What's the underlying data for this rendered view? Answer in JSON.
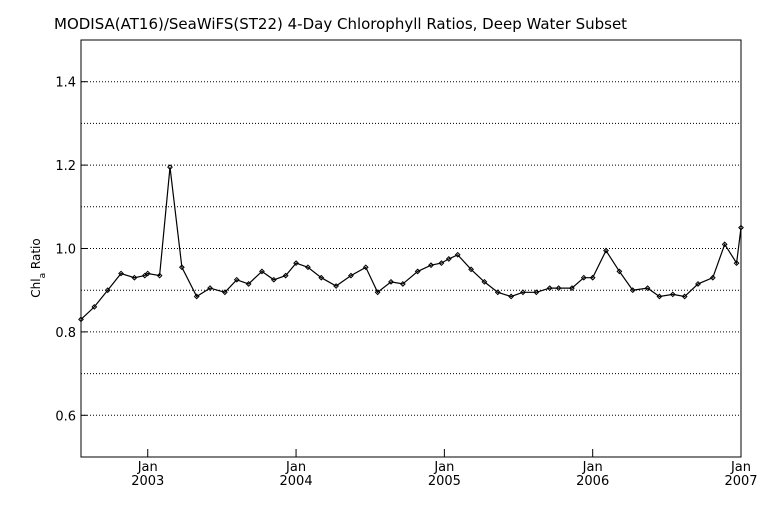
{
  "chart_data": {
    "type": "line",
    "title": "MODISA(AT16)/SeaWiFS(ST22) 4-Day Chlorophyll Ratios, Deep Water Subset",
    "ylabel_main": "Chl",
    "ylabel_sub": "a",
    "ylabel_rest": " Ratio",
    "xlabel": "",
    "ylim": [
      0.5,
      1.5
    ],
    "xlim": [
      2002.55,
      2007.0
    ],
    "yticks": [
      {
        "value": 0.6,
        "label": "0.6"
      },
      {
        "value": 0.8,
        "label": "0.8"
      },
      {
        "value": 1.0,
        "label": "1.0"
      },
      {
        "value": 1.2,
        "label": "1.2"
      },
      {
        "value": 1.4,
        "label": "1.4"
      }
    ],
    "ygrid": [
      0.6,
      0.7,
      0.8,
      0.9,
      1.0,
      1.1,
      1.2,
      1.3,
      1.4
    ],
    "xticks": [
      {
        "value": 2003.0,
        "month": "Jan",
        "year": "2003"
      },
      {
        "value": 2004.0,
        "month": "Jan",
        "year": "2004"
      },
      {
        "value": 2005.0,
        "month": "Jan",
        "year": "2005"
      },
      {
        "value": 2006.0,
        "month": "Jan",
        "year": "2006"
      },
      {
        "value": 2007.0,
        "month": "Jan",
        "year": "2007"
      }
    ],
    "grid": "horizontal dotted",
    "series": [
      {
        "color": "#000000",
        "x": [
          2002.55,
          2002.64,
          2002.73,
          2002.82,
          2002.91,
          2002.98,
          2003.0,
          2003.08,
          2003.15,
          2003.23,
          2003.33,
          2003.42,
          2003.52,
          2003.6,
          2003.68,
          2003.77,
          2003.85,
          2003.93,
          2004.0,
          2004.08,
          2004.17,
          2004.27,
          2004.37,
          2004.47,
          2004.55,
          2004.64,
          2004.72,
          2004.82,
          2004.91,
          2004.98,
          2005.03,
          2005.09,
          2005.18,
          2005.27,
          2005.36,
          2005.45,
          2005.53,
          2005.62,
          2005.71,
          2005.77,
          2005.86,
          2005.94,
          2006.0,
          2006.09,
          2006.18,
          2006.27,
          2006.37,
          2006.45,
          2006.54,
          2006.62,
          2006.71,
          2006.81,
          2006.89,
          2006.97,
          2007.0
        ],
        "y": [
          0.83,
          0.86,
          0.9,
          0.94,
          0.93,
          0.935,
          0.94,
          0.935,
          1.195,
          0.955,
          0.885,
          0.905,
          0.895,
          0.925,
          0.915,
          0.945,
          0.925,
          0.935,
          0.965,
          0.955,
          0.93,
          0.91,
          0.935,
          0.955,
          0.895,
          0.92,
          0.915,
          0.945,
          0.96,
          0.965,
          0.975,
          0.985,
          0.95,
          0.92,
          0.895,
          0.885,
          0.895,
          0.895,
          0.905,
          0.905,
          0.905,
          0.93,
          0.93,
          0.995,
          0.945,
          0.9,
          0.905,
          0.885,
          0.89,
          0.885,
          0.915,
          0.93,
          1.01,
          0.965,
          1.05
        ]
      }
    ]
  }
}
